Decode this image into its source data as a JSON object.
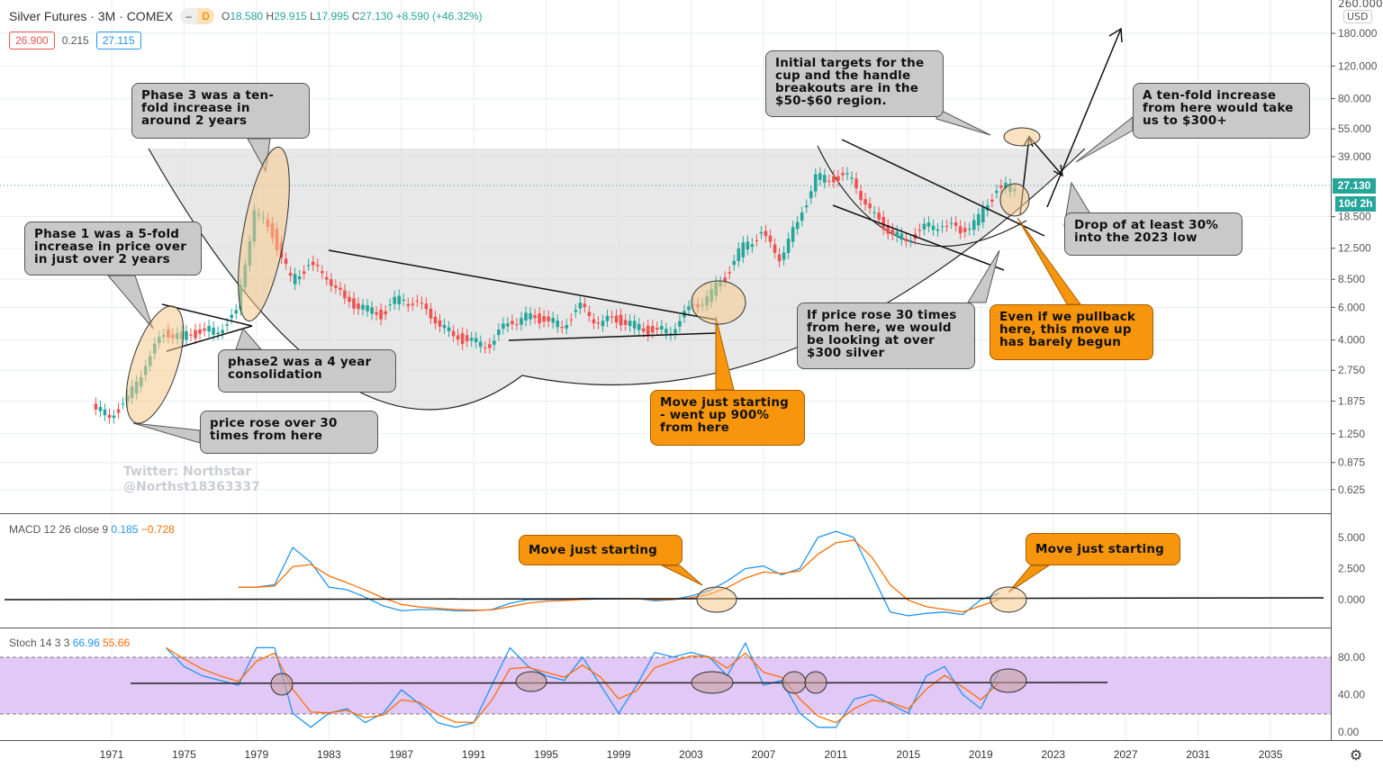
{
  "header": {
    "title": "Silver Futures · 3M · COMEX",
    "mode_dash": "–",
    "mode": "D",
    "o_label": "O",
    "o": "18.580",
    "h_label": "H",
    "h": "29.915",
    "l_label": "L",
    "l": "17.995",
    "c_label": "C",
    "c": "27.130",
    "change": "+8.590 (+46.32%)",
    "bid": "26.900",
    "spread": "0.215",
    "ask": "27.115"
  },
  "axis": {
    "currency": "USD",
    "last_price": "27.130",
    "countdown": "10d 2h",
    "price_ticks": [
      "260.000",
      "180.000",
      "120.000",
      "80.000",
      "55.000",
      "39.000",
      "18.500",
      "12.500",
      "8.500",
      "6.000",
      "4.000",
      "2.750",
      "1.875",
      "1.250",
      "0.875",
      "0.625"
    ],
    "macd_ticks": [
      "5.000",
      "2.500",
      "0.000"
    ],
    "stoch_ticks": [
      "80.00",
      "40.00",
      "0.00"
    ],
    "years": [
      "1971",
      "1975",
      "1979",
      "1983",
      "1987",
      "1991",
      "1995",
      "1999",
      "2003",
      "2007",
      "2011",
      "2015",
      "2019",
      "2023",
      "2027",
      "2031",
      "2035"
    ]
  },
  "indicators": {
    "macd_label": "MACD 12 26 close 9",
    "macd_val": "0.185",
    "macd_signal": "−0.728",
    "stoch_label": "Stoch 14 3 3",
    "stoch_k": "66.96",
    "stoch_d": "55.66"
  },
  "watermark": [
    "Twitter: Northstar",
    "@Northst18363337"
  ],
  "callouts": {
    "phase3": "Phase 3 was a ten-fold increase in around 2 years",
    "phase1": "Phase 1 was a 5-fold increase in price over in just over 2 years",
    "phase2": "phase2 was a 4 year consolidation",
    "price30": "price rose over 30 times from here",
    "targets": "Initial targets for the cup and the handle breakouts are in the $50-$60 region.",
    "tenfold": "A ten-fold increase from here would take us to $300+",
    "drop": "Drop of at least 30% into the 2023 low",
    "if30": "If price rose 30 times from here, we would be looking at over $300 silver",
    "move900": "Move just starting - went up 900% from here",
    "pullback": "Even if we pullback here, this move up has barely begun",
    "macd1": "Move just starting",
    "macd2": "Move just starting"
  },
  "colors": {
    "up": "#26a69a",
    "down": "#ef5350",
    "macd": "#2196f3",
    "signal": "#ff6d00",
    "stoch_band": "#e1c8f7"
  },
  "chart_data": {
    "type": "candlestick",
    "title": "Silver Futures · 3M · COMEX",
    "scale": "log",
    "ylim": [
      0.6,
      260
    ],
    "xlim": [
      1968,
      2037
    ],
    "price": {
      "years": [
        1970,
        1971,
        1972,
        1973,
        1974,
        1975,
        1976,
        1977,
        1978,
        1979,
        1980,
        1981,
        1982,
        1983,
        1984,
        1985,
        1986,
        1987,
        1988,
        1989,
        1990,
        1991,
        1992,
        1993,
        1994,
        1995,
        1996,
        1997,
        1998,
        1999,
        2000,
        2001,
        2002,
        2003,
        2004,
        2005,
        2006,
        2007,
        2008,
        2009,
        2010,
        2011,
        2012,
        2013,
        2014,
        2015,
        2016,
        2017,
        2018,
        2019,
        2020,
        2021
      ],
      "close": [
        1.8,
        1.55,
        1.9,
        3.0,
        4.4,
        4.2,
        4.4,
        4.6,
        5.5,
        20,
        15,
        8.5,
        10,
        9,
        6.5,
        6,
        5.5,
        6.8,
        6.2,
        5.2,
        4.2,
        3.9,
        3.8,
        5.0,
        5.3,
        5.2,
        4.8,
        6.0,
        5.0,
        5.2,
        4.8,
        4.4,
        4.6,
        5.8,
        6.8,
        8.8,
        13,
        14.8,
        11.3,
        17,
        30,
        30,
        30,
        19.5,
        15.7,
        13.8,
        16,
        17,
        15.5,
        18,
        26,
        27.13
      ]
    },
    "macd": {
      "years": [
        1978,
        1979,
        1980,
        1981,
        1982,
        1983,
        1984,
        1985,
        1986,
        1987,
        1988,
        1989,
        1990,
        1991,
        1992,
        1993,
        1994,
        1995,
        1996,
        1997,
        1998,
        1999,
        2000,
        2001,
        2002,
        2003,
        2004,
        2005,
        2006,
        2007,
        2008,
        2009,
        2010,
        2011,
        2012,
        2013,
        2014,
        2015,
        2016,
        2017,
        2018,
        2019,
        2020
      ],
      "values": [
        1.0,
        1.0,
        1.2,
        4.2,
        3.0,
        1.0,
        0.8,
        0.2,
        -0.5,
        -0.9,
        -0.8,
        -0.8,
        -0.9,
        -0.9,
        -0.8,
        -0.3,
        0,
        0,
        0,
        0.1,
        0.1,
        0.1,
        0.1,
        -0.1,
        0,
        0.3,
        0.7,
        1.5,
        2.5,
        2.7,
        2.0,
        2.5,
        5.0,
        5.5,
        5.0,
        2.0,
        -1.0,
        -1.3,
        -1.1,
        -1.0,
        -1.2,
        0.0,
        0.5
      ]
    },
    "stoch": {
      "years": [
        1974,
        1975,
        1976,
        1977,
        1978,
        1979,
        1980,
        1981,
        1982,
        1983,
        1984,
        1985,
        1986,
        1987,
        1988,
        1989,
        1990,
        1991,
        1992,
        1993,
        1994,
        1995,
        1996,
        1997,
        1998,
        1999,
        2000,
        2001,
        2002,
        2003,
        2004,
        2005,
        2006,
        2007,
        2008,
        2009,
        2010,
        2011,
        2012,
        2013,
        2014,
        2015,
        2016,
        2017,
        2018,
        2019,
        2020
      ],
      "values": [
        90,
        70,
        60,
        55,
        50,
        90,
        90,
        20,
        5,
        20,
        25,
        10,
        20,
        45,
        30,
        10,
        5,
        10,
        50,
        90,
        70,
        60,
        55,
        80,
        50,
        20,
        50,
        85,
        80,
        85,
        80,
        60,
        95,
        50,
        55,
        20,
        5,
        5,
        35,
        40,
        30,
        20,
        60,
        70,
        40,
        25,
        65
      ]
    }
  }
}
